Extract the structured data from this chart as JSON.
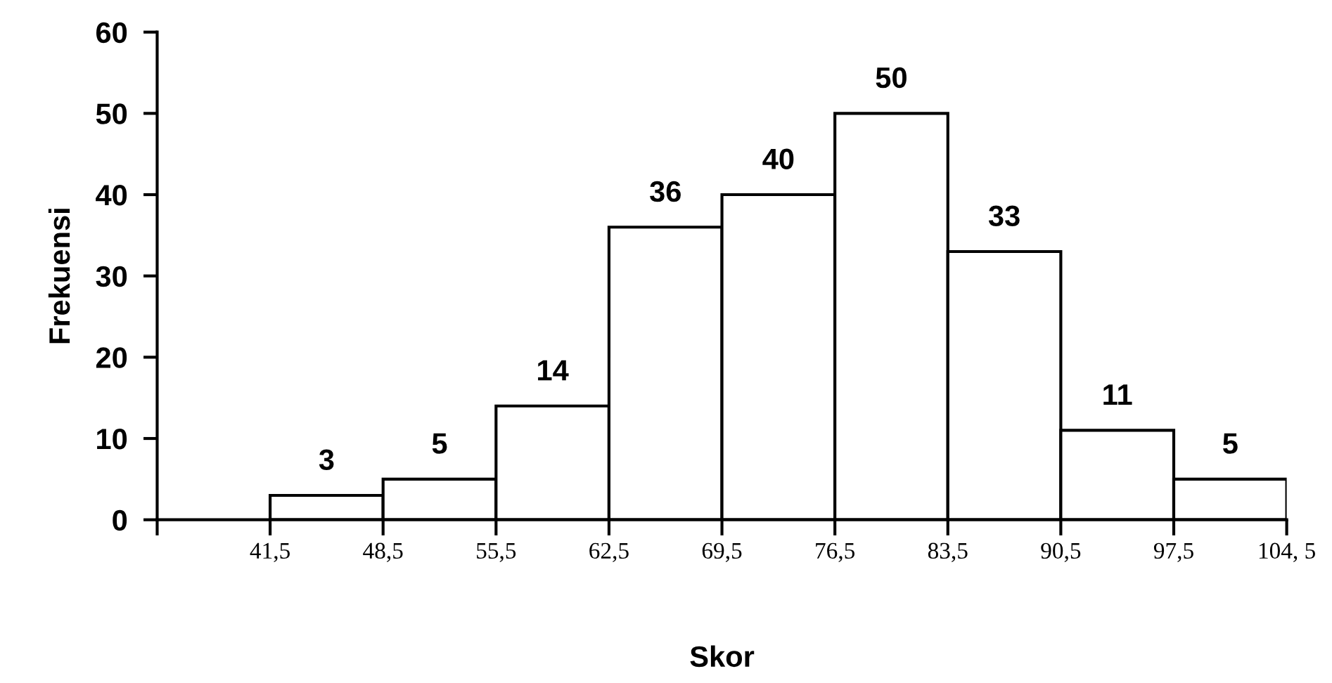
{
  "chart_data": {
    "type": "histogram",
    "xlabel": "Skor",
    "ylabel": "Frekuensi",
    "bins": [
      41.5,
      48.5,
      55.5,
      62.5,
      69.5,
      76.5,
      83.5,
      90.5,
      97.5,
      104.5
    ],
    "values": [
      3,
      5,
      14,
      36,
      40,
      50,
      33,
      11,
      5
    ],
    "color": "#ffffff",
    "xlim": [
      34.5,
      104.5
    ],
    "xticks": [
      {
        "value": 34.5,
        "label": null
      },
      {
        "value": 41.5,
        "label": "41,5"
      },
      {
        "value": 48.5,
        "label": "48,5"
      },
      {
        "value": 55.5,
        "label": "55,5"
      },
      {
        "value": 62.5,
        "label": "62,5"
      },
      {
        "value": 69.5,
        "label": "69,5"
      },
      {
        "value": 76.5,
        "label": "76,5"
      },
      {
        "value": 83.5,
        "label": "83,5"
      },
      {
        "value": 90.5,
        "label": "90,5"
      },
      {
        "value": 97.5,
        "label": "97,5"
      },
      {
        "value": 104.5,
        "label": "104, 5"
      }
    ],
    "ylim": [
      0,
      60
    ],
    "yticks": [
      0,
      10,
      20,
      30,
      40,
      50,
      60
    ],
    "data_labels": true,
    "grid": false,
    "legend": false
  }
}
